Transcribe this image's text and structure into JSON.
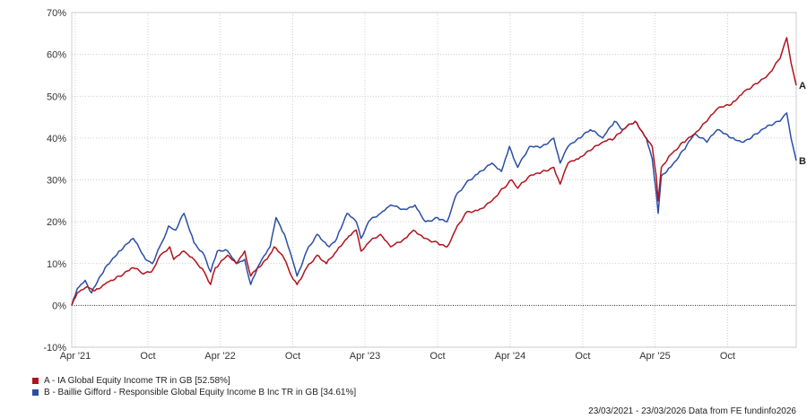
{
  "colors": {
    "A": "#b2121b",
    "B": "#2a4ea5",
    "grid": "#bdbdbd",
    "axis": "#555555"
  },
  "chart_data": {
    "type": "line",
    "y_unit": "%",
    "ylim": [
      -10,
      70
    ],
    "yticks": [
      -10,
      0,
      10,
      20,
      30,
      40,
      50,
      60,
      70
    ],
    "ytick_labels": [
      "-10%",
      "0%",
      "10%",
      "20%",
      "30%",
      "40%",
      "50%",
      "60%",
      "70%"
    ],
    "xlim": [
      "2021-03-23",
      "2026-03-23"
    ],
    "xticks": [
      {
        "date": "2021-04-01",
        "label": "Apr '21"
      },
      {
        "date": "2021-10-01",
        "label": "Oct"
      },
      {
        "date": "2022-04-01",
        "label": "Apr '22"
      },
      {
        "date": "2022-10-01",
        "label": "Oct"
      },
      {
        "date": "2023-04-01",
        "label": "Apr '23"
      },
      {
        "date": "2023-10-01",
        "label": "Oct"
      },
      {
        "date": "2024-04-01",
        "label": "Apr '24"
      },
      {
        "date": "2024-10-01",
        "label": "Oct"
      },
      {
        "date": "2025-04-01",
        "label": "Apr '25"
      },
      {
        "date": "2025-10-01",
        "label": "Oct"
      }
    ],
    "grid": true,
    "zero_line": "dotted",
    "series": [
      {
        "name": "A",
        "color": "#b2121b",
        "legend": "A - IA Global Equity Income TR in GB [52.58%]",
        "points": [
          [
            "2021-03-23",
            0
          ],
          [
            "2021-04-06",
            3
          ],
          [
            "2021-05-01",
            4.5
          ],
          [
            "2021-05-20",
            3.5
          ],
          [
            "2021-06-20",
            5.5
          ],
          [
            "2021-07-20",
            7
          ],
          [
            "2021-08-25",
            9
          ],
          [
            "2021-09-20",
            7.5
          ],
          [
            "2021-10-10",
            8
          ],
          [
            "2021-11-01",
            12
          ],
          [
            "2021-11-25",
            14
          ],
          [
            "2021-12-05",
            11
          ],
          [
            "2021-12-30",
            13
          ],
          [
            "2022-01-25",
            11
          ],
          [
            "2022-02-20",
            8
          ],
          [
            "2022-03-08",
            5
          ],
          [
            "2022-03-20",
            9
          ],
          [
            "2022-04-20",
            12
          ],
          [
            "2022-05-12",
            10
          ],
          [
            "2022-06-02",
            13
          ],
          [
            "2022-06-17",
            7
          ],
          [
            "2022-07-05",
            9
          ],
          [
            "2022-07-28",
            11
          ],
          [
            "2022-08-15",
            14
          ],
          [
            "2022-09-05",
            12
          ],
          [
            "2022-09-28",
            7
          ],
          [
            "2022-10-12",
            5
          ],
          [
            "2022-11-05",
            9
          ],
          [
            "2022-12-01",
            12
          ],
          [
            "2022-12-25",
            10
          ],
          [
            "2023-01-20",
            13
          ],
          [
            "2023-02-15",
            16
          ],
          [
            "2023-03-10",
            18
          ],
          [
            "2023-03-22",
            13
          ],
          [
            "2023-04-10",
            15
          ],
          [
            "2023-05-10",
            17
          ],
          [
            "2023-06-05",
            14
          ],
          [
            "2023-07-10",
            16
          ],
          [
            "2023-08-01",
            18
          ],
          [
            "2023-09-01",
            16
          ],
          [
            "2023-10-01",
            15
          ],
          [
            "2023-10-25",
            14
          ],
          [
            "2023-11-15",
            18
          ],
          [
            "2023-12-10",
            22
          ],
          [
            "2024-01-15",
            23
          ],
          [
            "2024-02-15",
            25
          ],
          [
            "2024-03-15",
            28
          ],
          [
            "2024-04-05",
            30
          ],
          [
            "2024-04-20",
            28
          ],
          [
            "2024-05-20",
            31
          ],
          [
            "2024-06-20",
            32
          ],
          [
            "2024-07-20",
            33
          ],
          [
            "2024-08-05",
            29
          ],
          [
            "2024-08-25",
            34
          ],
          [
            "2024-09-20",
            35
          ],
          [
            "2024-10-20",
            37
          ],
          [
            "2024-11-20",
            39
          ],
          [
            "2024-12-20",
            40
          ],
          [
            "2025-01-10",
            42
          ],
          [
            "2025-02-10",
            44
          ],
          [
            "2025-03-10",
            40
          ],
          [
            "2025-03-25",
            38
          ],
          [
            "2025-04-04",
            31
          ],
          [
            "2025-04-09",
            25
          ],
          [
            "2025-04-17",
            33
          ],
          [
            "2025-05-10",
            36
          ],
          [
            "2025-06-10",
            39
          ],
          [
            "2025-07-10",
            41
          ],
          [
            "2025-08-10",
            44
          ],
          [
            "2025-09-05",
            47
          ],
          [
            "2025-10-10",
            48
          ],
          [
            "2025-11-10",
            51
          ],
          [
            "2025-12-10",
            53
          ],
          [
            "2026-01-10",
            55
          ],
          [
            "2026-02-10",
            59
          ],
          [
            "2026-02-27",
            64
          ],
          [
            "2026-03-10",
            58
          ],
          [
            "2026-03-23",
            52.58
          ]
        ]
      },
      {
        "name": "B",
        "color": "#2a4ea5",
        "legend": "B - Baillie Gifford - Responsible Global Equity Income B Inc TR in GB [34.61%]",
        "points": [
          [
            "2021-03-23",
            0
          ],
          [
            "2021-04-06",
            4
          ],
          [
            "2021-04-26",
            6
          ],
          [
            "2021-05-12",
            3
          ],
          [
            "2021-06-15",
            9
          ],
          [
            "2021-07-20",
            13
          ],
          [
            "2021-08-25",
            16
          ],
          [
            "2021-09-25",
            11
          ],
          [
            "2021-10-12",
            10
          ],
          [
            "2021-11-05",
            15
          ],
          [
            "2021-11-22",
            19
          ],
          [
            "2021-12-10",
            18
          ],
          [
            "2021-12-31",
            22
          ],
          [
            "2022-01-25",
            15
          ],
          [
            "2022-02-20",
            12
          ],
          [
            "2022-03-08",
            8
          ],
          [
            "2022-03-25",
            13
          ],
          [
            "2022-04-20",
            13
          ],
          [
            "2022-05-12",
            10
          ],
          [
            "2022-06-02",
            11
          ],
          [
            "2022-06-17",
            5
          ],
          [
            "2022-07-10",
            10
          ],
          [
            "2022-08-05",
            14
          ],
          [
            "2022-08-20",
            21
          ],
          [
            "2022-09-10",
            17
          ],
          [
            "2022-09-30",
            11
          ],
          [
            "2022-10-12",
            7
          ],
          [
            "2022-11-05",
            13
          ],
          [
            "2022-12-01",
            17
          ],
          [
            "2023-01-01",
            14
          ],
          [
            "2023-01-20",
            16
          ],
          [
            "2023-02-15",
            22
          ],
          [
            "2023-03-10",
            20
          ],
          [
            "2023-03-22",
            16
          ],
          [
            "2023-04-10",
            20
          ],
          [
            "2023-05-10",
            22
          ],
          [
            "2023-06-05",
            24
          ],
          [
            "2023-07-10",
            23
          ],
          [
            "2023-08-05",
            24
          ],
          [
            "2023-09-01",
            20
          ],
          [
            "2023-10-01",
            21
          ],
          [
            "2023-10-25",
            20
          ],
          [
            "2023-11-15",
            26
          ],
          [
            "2023-12-10",
            29
          ],
          [
            "2024-01-15",
            32
          ],
          [
            "2024-02-15",
            34
          ],
          [
            "2024-03-10",
            32
          ],
          [
            "2024-03-30",
            38
          ],
          [
            "2024-04-20",
            33
          ],
          [
            "2024-05-20",
            38
          ],
          [
            "2024-06-20",
            38
          ],
          [
            "2024-07-20",
            40
          ],
          [
            "2024-08-05",
            34
          ],
          [
            "2024-08-25",
            38
          ],
          [
            "2024-09-25",
            40
          ],
          [
            "2024-10-20",
            42
          ],
          [
            "2024-11-20",
            40
          ],
          [
            "2024-12-20",
            44
          ],
          [
            "2025-01-10",
            42
          ],
          [
            "2025-02-10",
            44
          ],
          [
            "2025-03-10",
            40
          ],
          [
            "2025-03-25",
            35
          ],
          [
            "2025-04-04",
            27
          ],
          [
            "2025-04-09",
            22
          ],
          [
            "2025-04-17",
            31
          ],
          [
            "2025-05-10",
            33
          ],
          [
            "2025-06-10",
            37
          ],
          [
            "2025-07-10",
            41
          ],
          [
            "2025-08-10",
            39
          ],
          [
            "2025-09-05",
            42
          ],
          [
            "2025-10-10",
            40
          ],
          [
            "2025-11-10",
            39
          ],
          [
            "2025-12-10",
            41
          ],
          [
            "2026-01-10",
            43
          ],
          [
            "2026-02-10",
            44
          ],
          [
            "2026-02-27",
            46
          ],
          [
            "2026-03-10",
            40
          ],
          [
            "2026-03-23",
            34.61
          ]
        ]
      }
    ],
    "legend": [
      "A - IA Global Equity Income TR in GB [52.58%]",
      "B - Baillie Gifford - Responsible Global Equity Income B Inc TR in GB [34.61%]"
    ],
    "end_labels": [
      "A",
      "B"
    ],
    "footer": "23/03/2021 - 23/03/2026 Data from FE fundinfo2026"
  }
}
